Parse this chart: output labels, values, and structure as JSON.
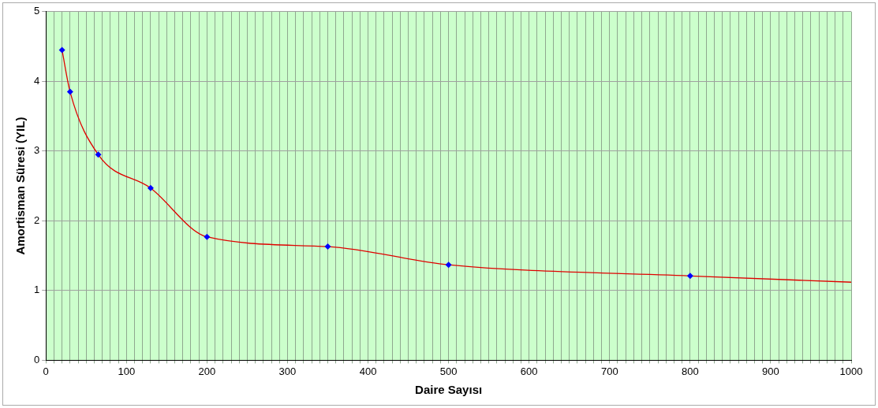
{
  "chart_data": {
    "type": "line",
    "xlabel": "Daire Sayısı",
    "ylabel": "Amortisman Süresi (YIL)",
    "xlim": [
      0,
      1000
    ],
    "ylim": [
      0,
      5
    ],
    "xticks": [
      0,
      {
        "value": 10,
        "label": null
      },
      {
        "value": 20,
        "label": null
      },
      {
        "value": 30,
        "label": null
      },
      {
        "value": 40,
        "label": null
      },
      {
        "value": 50,
        "label": null
      },
      {
        "value": 60,
        "label": null
      },
      {
        "value": 70,
        "label": null
      },
      {
        "value": 80,
        "label": null
      },
      {
        "value": 90,
        "label": null
      },
      100,
      {
        "value": 110,
        "label": null
      },
      {
        "value": 120,
        "label": null
      },
      {
        "value": 130,
        "label": null
      },
      {
        "value": 140,
        "label": null
      },
      {
        "value": 150,
        "label": null
      },
      {
        "value": 160,
        "label": null
      },
      {
        "value": 170,
        "label": null
      },
      {
        "value": 180,
        "label": null
      },
      {
        "value": 190,
        "label": null
      },
      200,
      {
        "value": 210,
        "label": null
      },
      {
        "value": 220,
        "label": null
      },
      {
        "value": 230,
        "label": null
      },
      {
        "value": 240,
        "label": null
      },
      {
        "value": 250,
        "label": null
      },
      {
        "value": 260,
        "label": null
      },
      {
        "value": 270,
        "label": null
      },
      {
        "value": 280,
        "label": null
      },
      {
        "value": 290,
        "label": null
      },
      300,
      {
        "value": 310,
        "label": null
      },
      {
        "value": 320,
        "label": null
      },
      {
        "value": 330,
        "label": null
      },
      {
        "value": 340,
        "label": null
      },
      {
        "value": 350,
        "label": null
      },
      {
        "value": 360,
        "label": null
      },
      {
        "value": 370,
        "label": null
      },
      {
        "value": 380,
        "label": null
      },
      {
        "value": 390,
        "label": null
      },
      400,
      {
        "value": 410,
        "label": null
      },
      {
        "value": 420,
        "label": null
      },
      {
        "value": 430,
        "label": null
      },
      {
        "value": 440,
        "label": null
      },
      {
        "value": 450,
        "label": null
      },
      {
        "value": 460,
        "label": null
      },
      {
        "value": 470,
        "label": null
      },
      {
        "value": 480,
        "label": null
      },
      {
        "value": 490,
        "label": null
      },
      500,
      {
        "value": 510,
        "label": null
      },
      {
        "value": 520,
        "label": null
      },
      {
        "value": 530,
        "label": null
      },
      {
        "value": 540,
        "label": null
      },
      {
        "value": 550,
        "label": null
      },
      {
        "value": 560,
        "label": null
      },
      {
        "value": 570,
        "label": null
      },
      {
        "value": 580,
        "label": null
      },
      {
        "value": 590,
        "label": null
      },
      600,
      {
        "value": 610,
        "label": null
      },
      {
        "value": 620,
        "label": null
      },
      {
        "value": 630,
        "label": null
      },
      {
        "value": 640,
        "label": null
      },
      {
        "value": 650,
        "label": null
      },
      {
        "value": 660,
        "label": null
      },
      {
        "value": 670,
        "label": null
      },
      {
        "value": 680,
        "label": null
      },
      {
        "value": 690,
        "label": null
      },
      700,
      {
        "value": 710,
        "label": null
      },
      {
        "value": 720,
        "label": null
      },
      {
        "value": 730,
        "label": null
      },
      {
        "value": 740,
        "label": null
      },
      {
        "value": 750,
        "label": null
      },
      {
        "value": 760,
        "label": null
      },
      {
        "value": 770,
        "label": null
      },
      {
        "value": 780,
        "label": null
      },
      {
        "value": 790,
        "label": null
      },
      800,
      {
        "value": 810,
        "label": null
      },
      {
        "value": 820,
        "label": null
      },
      {
        "value": 830,
        "label": null
      },
      {
        "value": 840,
        "label": null
      },
      {
        "value": 850,
        "label": null
      },
      {
        "value": 860,
        "label": null
      },
      {
        "value": 870,
        "label": null
      },
      {
        "value": 880,
        "label": null
      },
      {
        "value": 890,
        "label": null
      },
      900,
      {
        "value": 910,
        "label": null
      },
      {
        "value": 920,
        "label": null
      },
      {
        "value": 930,
        "label": null
      },
      {
        "value": 940,
        "label": null
      },
      {
        "value": 950,
        "label": null
      },
      {
        "value": 960,
        "label": null
      },
      {
        "value": 970,
        "label": null
      },
      {
        "value": 980,
        "label": null
      },
      {
        "value": 990,
        "label": null
      },
      1000
    ],
    "yticks": [
      0,
      1,
      2,
      3,
      4,
      5
    ],
    "grid": true,
    "legend": false,
    "series": [
      {
        "color": "#e00000",
        "marker": "none",
        "x": [
          20,
          30,
          65,
          130,
          200,
          350,
          500,
          800,
          1000
        ],
        "values": [
          4.45,
          3.85,
          2.95,
          2.47,
          1.77,
          1.63,
          1.37,
          1.21,
          1.12
        ]
      },
      {
        "type": "scatter",
        "color": "#0000ff",
        "marker": "diamond",
        "x": [
          20,
          30,
          65,
          130,
          200,
          350,
          500,
          800
        ],
        "values": [
          4.45,
          3.85,
          2.95,
          2.47,
          1.77,
          1.63,
          1.37,
          1.21
        ]
      }
    ]
  }
}
